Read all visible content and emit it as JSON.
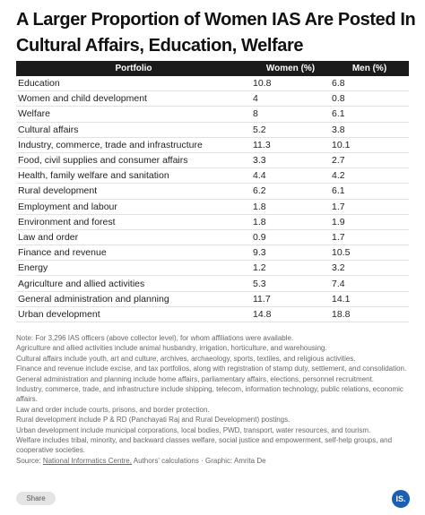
{
  "header": {
    "title": "A Larger Proportion of Women IAS Are Posted In Cultural Affairs, Education, Welfare"
  },
  "table": {
    "columns": [
      "Portfolio",
      "Women (%)",
      "Men (%)"
    ],
    "rows": [
      [
        "Education",
        10.8,
        6.8
      ],
      [
        "Women and child development",
        4,
        0.8
      ],
      [
        "Welfare",
        8,
        6.1
      ],
      [
        "Cultural affairs",
        5.2,
        3.8
      ],
      [
        "Industry, commerce, trade and infrastructure",
        11.3,
        10.1
      ],
      [
        "Food, civil supplies and consumer affairs",
        3.3,
        2.7
      ],
      [
        "Health, family welfare and sanitation",
        4.4,
        4.2
      ],
      [
        "Rural development",
        6.2,
        6.1
      ],
      [
        "Employment and labour",
        1.8,
        1.7
      ],
      [
        "Environment and forest",
        1.8,
        1.9
      ],
      [
        "Law and order",
        0.9,
        1.7
      ],
      [
        "Finance and revenue",
        9.3,
        10.5
      ],
      [
        "Energy",
        1.2,
        3.2
      ],
      [
        "Agriculture and allied activities",
        5.3,
        7.4
      ],
      [
        "General administration and planning",
        11.7,
        14.1
      ],
      [
        "Urban development",
        14.8,
        18.8
      ]
    ]
  },
  "notes": [
    "Note: For 3,296 IAS officers (above collector level), for whom affiliations were available.",
    "Agriculture and allied activities include animal husbandry, irrigation, horticulture, and warehousing.",
    "Cultural affairs include youth, art and culture, archives, archaeology, sports, textiles, and religious activities.",
    "Finance and revenue include excise, and tax portfolios, along with registration of stamp duty, settlement, and consolidation.",
    "General administration and planning include home affairs, parliamentary affairs, elections, personnel recruitment.",
    "Industry, commerce, trade, and infrastructure include shipping, telecom, information technology, public relations, economic affairs.",
    "Law and order include courts, prisons, and border protection.",
    "Rural development include P & RD (Panchayati Raj and Rural Development) postings.",
    "Urban development include municipal corporations, local bodies, PWD, transport, water resources, and tourism.",
    "Welfare includes tribal, minority, and backward classes welfare, social justice and empowerment, self-help groups, and cooperative societies."
  ],
  "source": {
    "label": "Source:",
    "link": "National Informatics Centre,",
    "rest": "Authors' calculations · Graphic: Amrita De"
  },
  "share": "Share",
  "logo": "IS."
}
